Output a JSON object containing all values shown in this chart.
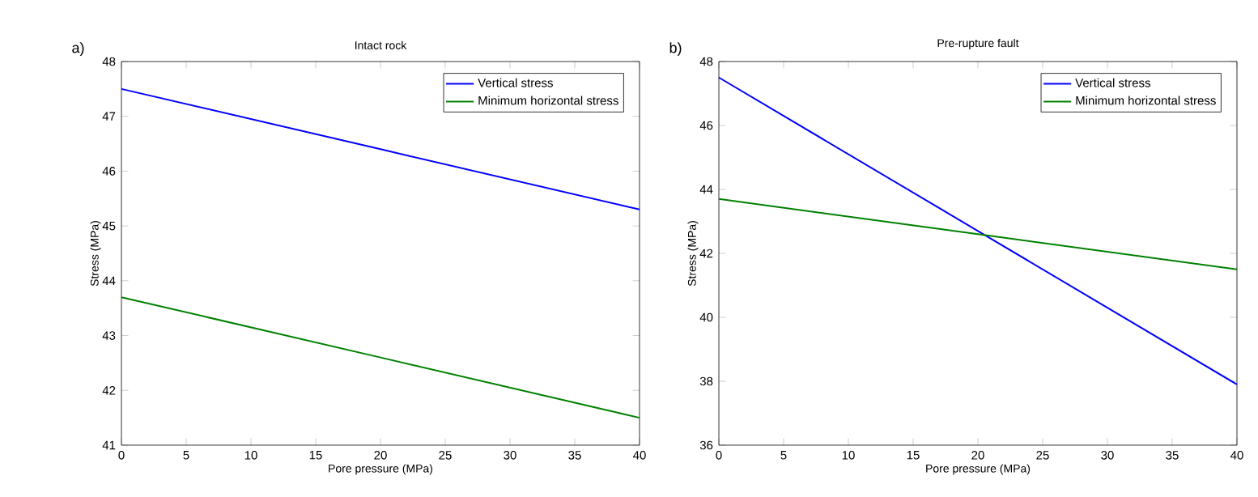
{
  "chart_data": [
    {
      "type": "line",
      "title": "Intact rock",
      "xlabel": "Pore pressure (MPa)",
      "ylabel": "Stress (MPa)",
      "annotations": [
        "a)"
      ],
      "x": [
        0,
        20,
        40
      ],
      "xlim": [
        0,
        40
      ],
      "ylim": [
        41,
        48
      ],
      "xticks": [
        0,
        5,
        10,
        15,
        20,
        25,
        30,
        35,
        40
      ],
      "yticks": [
        41,
        42,
        43,
        44,
        45,
        46,
        47,
        48
      ],
      "legend": "top right",
      "series": [
        {
          "name": "Vertical stress",
          "color": "#0000ff",
          "values": [
            47.5,
            46.4,
            45.3
          ]
        },
        {
          "name": "Minimum horizontal stress",
          "color": "#008000",
          "values": [
            43.7,
            42.6,
            41.5
          ]
        }
      ]
    },
    {
      "type": "line",
      "title": "Pre-rupture fault",
      "xlabel": "Pore pressure (MPa)",
      "ylabel": "Stress (MPa)",
      "annotations": [
        "b)"
      ],
      "x": [
        0,
        20,
        40
      ],
      "xlim": [
        0,
        40
      ],
      "ylim": [
        36,
        48
      ],
      "xticks": [
        0,
        5,
        10,
        15,
        20,
        25,
        30,
        35,
        40
      ],
      "yticks": [
        36,
        38,
        40,
        42,
        44,
        46,
        48
      ],
      "legend": "top right",
      "series": [
        {
          "name": "Vertical stress",
          "color": "#0000ff",
          "values": [
            47.5,
            42.7,
            37.9
          ]
        },
        {
          "name": "Minimum horizontal stress",
          "color": "#008000",
          "values": [
            43.7,
            42.6,
            41.5
          ]
        }
      ]
    }
  ]
}
